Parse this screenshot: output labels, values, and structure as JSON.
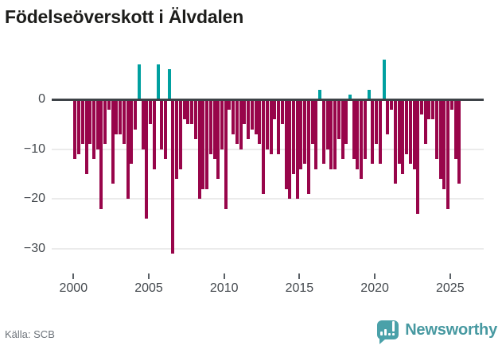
{
  "header": {
    "title": "Födelseöverskott i Älvdalen"
  },
  "footer": {
    "source": "Källa: SCB",
    "brand": "Newsworthy"
  },
  "chart_data": {
    "type": "bar",
    "title": "Födelseöverskott i Älvdalen",
    "period": "quarterly",
    "start_year": 2000,
    "start_quarter": 1,
    "end_label": "2025Q3",
    "x_tick_labels": [
      "2000",
      "2005",
      "2010",
      "2015",
      "2020",
      "2025"
    ],
    "y_tick_values": [
      0,
      -10,
      -20,
      -30
    ],
    "y_tick_labels": [
      "0",
      "−10",
      "−20",
      "−30"
    ],
    "ylim": [
      -33,
      9
    ],
    "grid": true,
    "legend": false,
    "colors": {
      "positive": "#00a0a0",
      "negative": "#98054a"
    },
    "series": [
      {
        "name": "Födelseöverskott",
        "values": [
          -12,
          -11,
          -9,
          -15,
          -9,
          -12,
          -10,
          -22,
          -9,
          -2,
          -17,
          -7,
          -7,
          -9,
          -20,
          -13,
          -6,
          7,
          -10,
          -24,
          -5,
          -14,
          7,
          -10,
          -12,
          6,
          -31,
          -16,
          -14,
          -4,
          -5,
          -5,
          -8,
          -20,
          -18,
          -18,
          -11,
          -12,
          -16,
          -10,
          -22,
          -2,
          -7,
          -9,
          -10,
          -5,
          -8,
          -6,
          -7,
          -9,
          -19,
          -10,
          -11,
          -4,
          -11,
          -5,
          -18,
          -20,
          -15,
          -20,
          -14,
          -13,
          -19,
          -9,
          -14,
          2,
          -13,
          -10,
          -14,
          -14,
          -8,
          -12,
          -9,
          1,
          -12,
          -14,
          -16,
          -12,
          2,
          -13,
          -9,
          -13,
          8,
          -7,
          -2,
          -17,
          -13,
          -15,
          -11,
          -13,
          -14,
          -23,
          -3,
          -9,
          -4,
          -4,
          -12,
          -16,
          -18,
          -22,
          -2,
          -12,
          -17
        ]
      }
    ]
  }
}
